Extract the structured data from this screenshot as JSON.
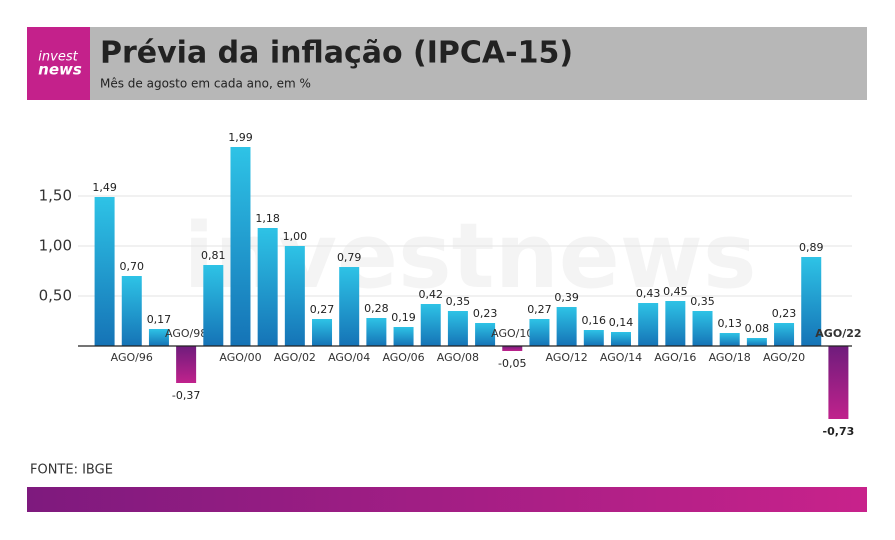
{
  "logo": {
    "top": "invest",
    "bottom": "news"
  },
  "watermark": "investnews",
  "source": "FONTE: IBGE",
  "chart_data": {
    "type": "bar",
    "title": "Prévia da inflação (IPCA-15)",
    "subtitle": "Mês de agosto em cada ano, em %",
    "categories": [
      null,
      "AGO/96",
      null,
      "AGO/98",
      null,
      "AGO/00",
      null,
      "AGO/02",
      null,
      "AGO/04",
      null,
      "AGO/06",
      null,
      "AGO/08",
      null,
      "AGO/10",
      null,
      "AGO/12",
      null,
      "AGO/14",
      null,
      "AGO/16",
      null,
      "AGO/18",
      null,
      "AGO/20",
      null,
      "AGO/22"
    ],
    "values": [
      1.49,
      0.7,
      0.17,
      -0.37,
      0.81,
      1.99,
      1.18,
      1.0,
      0.27,
      0.79,
      0.28,
      0.19,
      0.42,
      0.35,
      0.23,
      -0.05,
      0.27,
      0.39,
      0.16,
      0.14,
      0.43,
      0.45,
      0.35,
      0.13,
      0.08,
      0.23,
      0.89,
      -0.73
    ],
    "value_labels": [
      "1,49",
      "0,70",
      "0,17",
      "-0,37",
      "0,81",
      "1,99",
      "1,18",
      "1,00",
      "0,27",
      "0,79",
      "0,28",
      "0,19",
      "0,42",
      "0,35",
      "0,23",
      "-0,05",
      "0,27",
      "0,39",
      "0,16",
      "0,14",
      "0,43",
      "0,45",
      "0,35",
      "0,13",
      "0,08",
      "0,23",
      "0,89",
      "-0,73"
    ],
    "colors": {
      "positive": "#1a9fd6",
      "negative": "#a21d86"
    },
    "ylim": [
      -0.9,
      2.15
    ],
    "yticks": [
      {
        "value": 0.5,
        "label": "0,50"
      },
      {
        "value": 1.0,
        "label": "1,00"
      },
      {
        "value": 1.5,
        "label": "1,50"
      }
    ],
    "grid": true
  }
}
